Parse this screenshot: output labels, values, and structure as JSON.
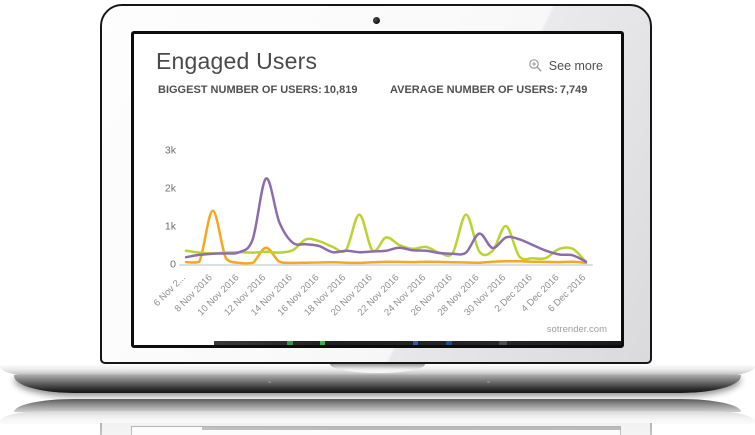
{
  "screen": {
    "title": "Engaged Users",
    "see_more_label": "See more",
    "stats": {
      "biggest_label": "BIGGEST NUMBER OF USERS:",
      "biggest_value": "10,819",
      "average_label": "AVERAGE NUMBER OF USERS:",
      "average_value": "7,749"
    },
    "watermark": "sotrender.com",
    "icons": {
      "see_more": "zoom-in-icon"
    }
  },
  "chart_data": {
    "type": "line",
    "title": "Engaged Users",
    "xlabel": "",
    "ylabel": "",
    "grid": false,
    "legend_position": "none",
    "ylim": [
      0,
      3000
    ],
    "y_tick_labels": [
      "0",
      "1k",
      "2k",
      "3k"
    ],
    "x_days": 31,
    "x_start": "6 Nov 2016",
    "x_end": "6 Dec 2016",
    "x_tick_labels": [
      "6 Nov 2...",
      "8 Nov 2016",
      "10 Nov 2016",
      "12 Nov 2016",
      "14 Nov 2016",
      "16 Nov 2016",
      "18 Nov 2016",
      "20 Nov 2016",
      "22 Nov 2016",
      "24 Nov 2016",
      "26 Nov 2016",
      "28 Nov 2016",
      "30 Nov 2016",
      "2 Dec 2016",
      "4 Dec 2016",
      "6 Dec 2016"
    ],
    "axis_line_color": "#d8dde6",
    "series": [
      {
        "name": "orange-series",
        "color": "#F7A71F",
        "values": [
          50,
          60,
          1400,
          150,
          30,
          30,
          430,
          60,
          30,
          35,
          40,
          45,
          35,
          30,
          45,
          60,
          55,
          50,
          60,
          55,
          45,
          40,
          35,
          60,
          70,
          70,
          60,
          55,
          50,
          60,
          30
        ]
      },
      {
        "name": "green-series",
        "color": "#B9D430",
        "values": [
          350,
          300,
          280,
          300,
          310,
          300,
          320,
          300,
          360,
          650,
          600,
          450,
          370,
          1300,
          350,
          700,
          500,
          400,
          450,
          300,
          290,
          1300,
          330,
          350,
          1000,
          200,
          150,
          160,
          400,
          400,
          50
        ]
      },
      {
        "name": "purple-series",
        "color": "#8D6CAE",
        "values": [
          180,
          240,
          270,
          280,
          310,
          650,
          2250,
          1100,
          560,
          520,
          470,
          310,
          350,
          310,
          330,
          350,
          430,
          360,
          350,
          290,
          270,
          300,
          800,
          420,
          700,
          650,
          500,
          350,
          250,
          230,
          60
        ]
      }
    ]
  }
}
